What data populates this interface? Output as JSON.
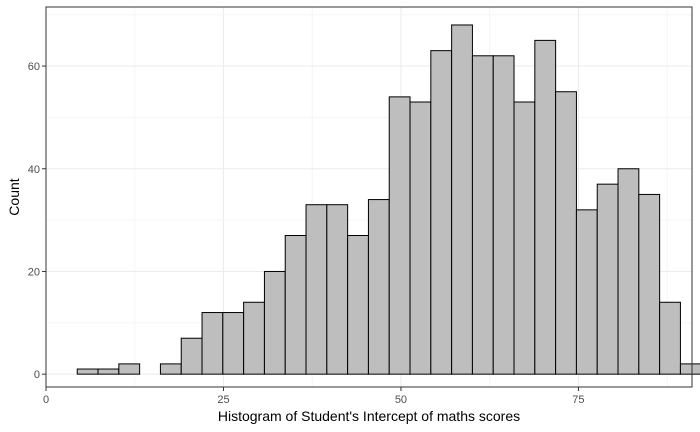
{
  "chart_data": {
    "type": "bar",
    "title": "",
    "xlabel": "Histogram of Student's Intercept of maths scores",
    "ylabel": "Count",
    "xlim": [
      0,
      91
    ],
    "ylim": [
      -2.5,
      71.5
    ],
    "x_ticks": [
      0,
      25,
      50,
      75
    ],
    "y_ticks": [
      0,
      20,
      40,
      60
    ],
    "x_tick_labels": [
      "0",
      "25",
      "50",
      "75"
    ],
    "y_tick_labels": [
      "0",
      "20",
      "40",
      "60"
    ],
    "grid": true,
    "legend": "none",
    "bin_width": 2.93,
    "bins": [
      {
        "x0": 4.4,
        "x1": 7.33,
        "count": 1
      },
      {
        "x0": 7.33,
        "x1": 10.26,
        "count": 1
      },
      {
        "x0": 10.26,
        "x1": 13.19,
        "count": 2
      },
      {
        "x0": 13.19,
        "x1": 16.12,
        "count": 0
      },
      {
        "x0": 16.12,
        "x1": 19.05,
        "count": 2
      },
      {
        "x0": 19.05,
        "x1": 21.98,
        "count": 7
      },
      {
        "x0": 21.98,
        "x1": 24.91,
        "count": 12
      },
      {
        "x0": 24.91,
        "x1": 27.84,
        "count": 12
      },
      {
        "x0": 27.84,
        "x1": 30.77,
        "count": 14
      },
      {
        "x0": 30.77,
        "x1": 33.7,
        "count": 20
      },
      {
        "x0": 33.7,
        "x1": 36.63,
        "count": 27
      },
      {
        "x0": 36.63,
        "x1": 39.56,
        "count": 33
      },
      {
        "x0": 39.56,
        "x1": 42.49,
        "count": 33
      },
      {
        "x0": 42.49,
        "x1": 45.42,
        "count": 27
      },
      {
        "x0": 45.42,
        "x1": 48.35,
        "count": 34
      },
      {
        "x0": 48.35,
        "x1": 51.28,
        "count": 54
      },
      {
        "x0": 51.28,
        "x1": 54.21,
        "count": 53
      },
      {
        "x0": 54.21,
        "x1": 57.14,
        "count": 63
      },
      {
        "x0": 57.14,
        "x1": 60.07,
        "count": 68
      },
      {
        "x0": 60.07,
        "x1": 63.0,
        "count": 62
      },
      {
        "x0": 63.0,
        "x1": 65.93,
        "count": 62
      },
      {
        "x0": 65.93,
        "x1": 68.86,
        "count": 53
      },
      {
        "x0": 68.86,
        "x1": 71.79,
        "count": 65
      },
      {
        "x0": 71.79,
        "x1": 74.72,
        "count": 55
      },
      {
        "x0": 74.72,
        "x1": 77.65,
        "count": 32
      },
      {
        "x0": 77.65,
        "x1": 80.58,
        "count": 37
      },
      {
        "x0": 80.58,
        "x1": 83.51,
        "count": 40
      },
      {
        "x0": 83.51,
        "x1": 86.44,
        "count": 35
      },
      {
        "x0": 86.44,
        "x1": 89.37,
        "count": 14
      },
      {
        "x0": 89.37,
        "x1": 92.3,
        "count": 2
      }
    ],
    "colors": {
      "bar_fill": "#bebebe",
      "bar_stroke": "#000000",
      "grid_major": "#ebebeb",
      "grid_minor": "#f5f5f5",
      "panel_border": "#333333",
      "tick_text": "#4d4d4d"
    }
  }
}
